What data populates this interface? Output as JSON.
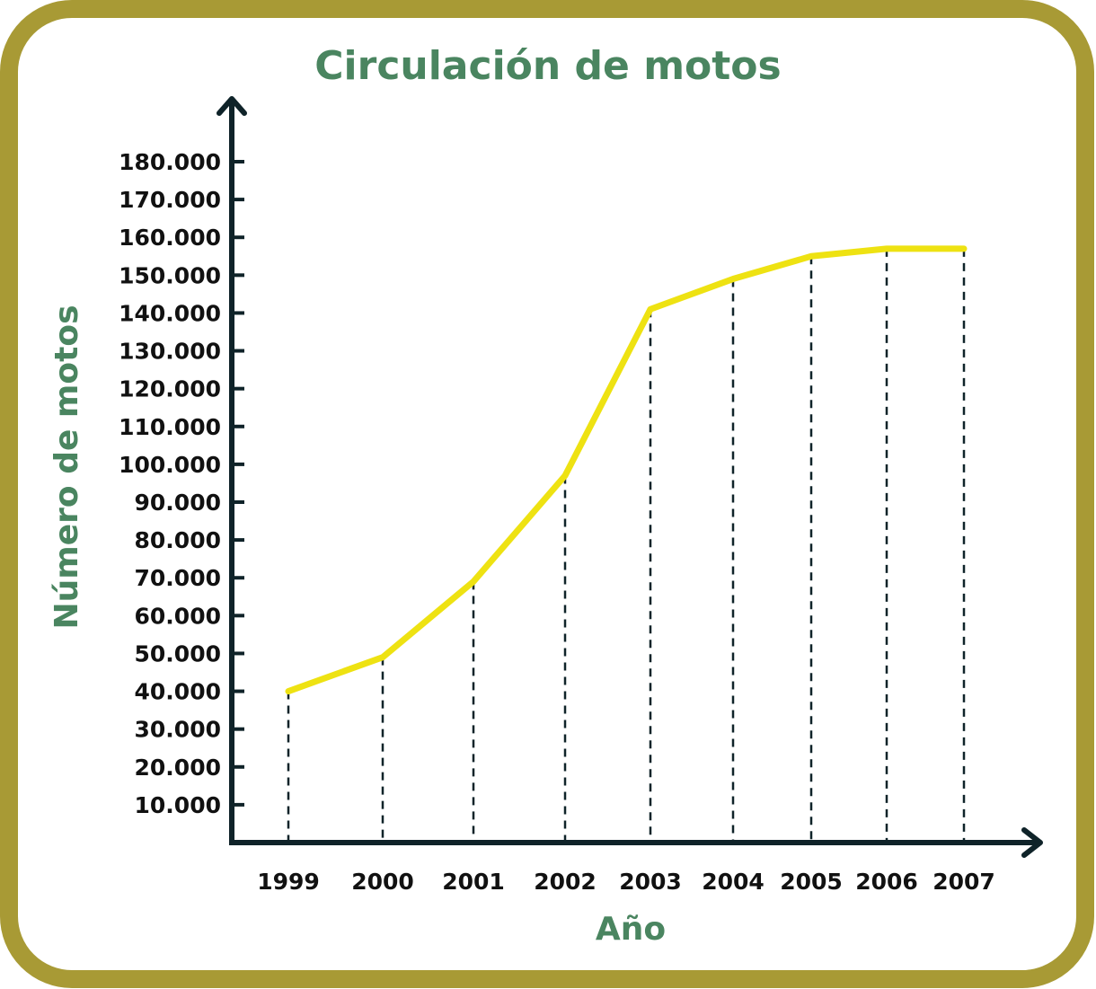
{
  "colors": {
    "border": "#A89A35",
    "title": "#4A8560",
    "axis": "#0F2329",
    "line": "#EEE212",
    "dash": "#0F2329"
  },
  "chart_data": {
    "type": "line",
    "title": "Circulación de motos",
    "xlabel": "Año",
    "ylabel": "Número de motos",
    "x": [
      "1999",
      "2000",
      "2001",
      "2002",
      "2003",
      "2004",
      "2005",
      "2006",
      "2007"
    ],
    "y_ticks": [
      "10.000",
      "20.000",
      "30.000",
      "40.000",
      "50.000",
      "60.000",
      "70.000",
      "80.000",
      "90.000",
      "100.000",
      "110.000",
      "120.000",
      "130.000",
      "140.000",
      "150.000",
      "160.000",
      "170.000",
      "180.000"
    ],
    "series": [
      {
        "values": [
          40000,
          49000,
          69000,
          97000,
          141000,
          149000,
          155000,
          157000,
          157000
        ]
      }
    ],
    "ylim": [
      0,
      180000
    ],
    "grid": false,
    "drop_lines": true
  }
}
